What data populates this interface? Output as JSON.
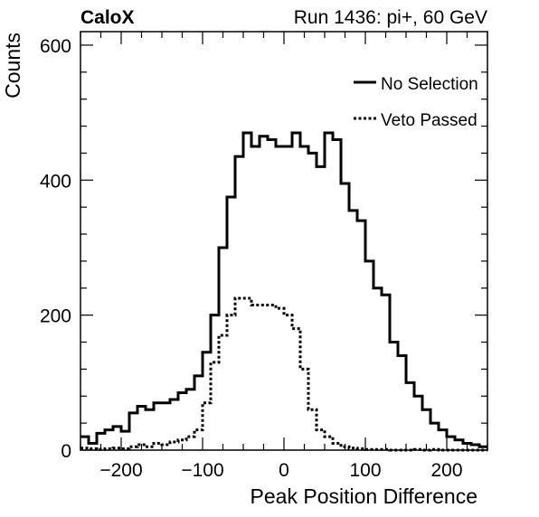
{
  "chart_data": {
    "type": "line",
    "title": "Run 1436: pi+, 60 GeV",
    "label": "CaloX",
    "xlabel": "Peak Position Difference",
    "ylabel": "Counts",
    "xlim": [
      -250,
      250
    ],
    "ylim": [
      0,
      620
    ],
    "x_ticks": [
      -200,
      -100,
      0,
      100,
      200
    ],
    "x_tick_labels": [
      "−200",
      "−100",
      "0",
      "100",
      "200"
    ],
    "y_ticks": [
      0,
      200,
      400,
      600
    ],
    "y_tick_labels": [
      "0",
      "200",
      "400",
      "600"
    ],
    "grid": false,
    "legend_position": "top-right",
    "bin_edges": [
      -250,
      -240,
      -230,
      -220,
      -210,
      -200,
      -190,
      -180,
      -170,
      -160,
      -150,
      -140,
      -130,
      -120,
      -110,
      -100,
      -90,
      -80,
      -70,
      -60,
      -50,
      -40,
      -30,
      -20,
      -10,
      0,
      10,
      20,
      30,
      40,
      50,
      60,
      70,
      80,
      90,
      100,
      110,
      120,
      130,
      140,
      150,
      160,
      170,
      180,
      190,
      200,
      210,
      220,
      230,
      240,
      250
    ],
    "series": [
      {
        "name": "No Selection",
        "style": "solid",
        "color": "#000000",
        "values": [
          20,
          10,
          25,
          30,
          35,
          28,
          55,
          65,
          60,
          70,
          70,
          75,
          85,
          90,
          110,
          145,
          200,
          300,
          375,
          435,
          470,
          450,
          465,
          460,
          450,
          450,
          470,
          450,
          440,
          420,
          470,
          460,
          395,
          355,
          340,
          280,
          240,
          230,
          160,
          140,
          100,
          80,
          60,
          40,
          30,
          20,
          15,
          10,
          8,
          5
        ]
      },
      {
        "name": "Veto Passed",
        "style": "dotted",
        "color": "#000000",
        "values": [
          3,
          2,
          1,
          2,
          3,
          2,
          5,
          8,
          5,
          10,
          8,
          12,
          15,
          20,
          30,
          70,
          130,
          170,
          200,
          225,
          225,
          215,
          215,
          215,
          210,
          200,
          180,
          120,
          60,
          30,
          20,
          10,
          5,
          3,
          2,
          1,
          1,
          1,
          0,
          0,
          0,
          1,
          0,
          1,
          0,
          0,
          0,
          0,
          0,
          0
        ]
      }
    ]
  }
}
